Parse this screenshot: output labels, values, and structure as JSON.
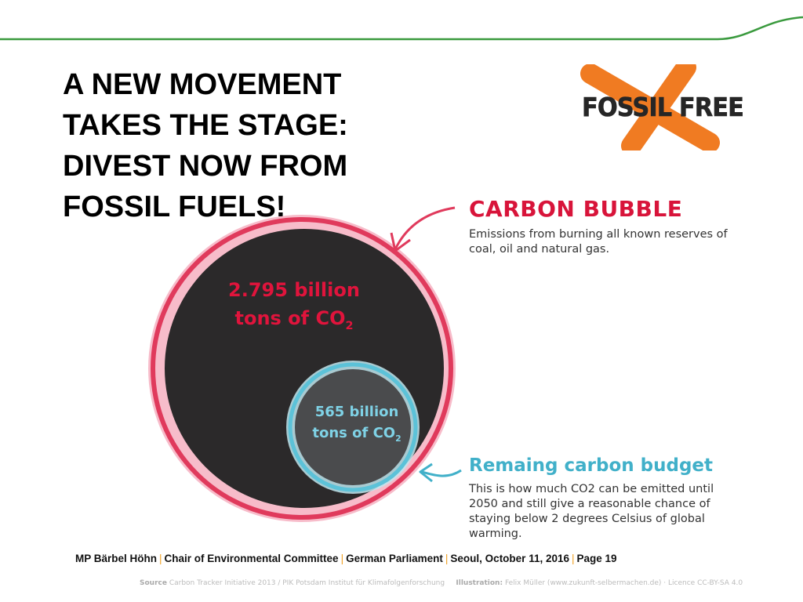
{
  "title_lines": [
    "A NEW MOVEMENT",
    "TAKES THE STAGE:",
    "DIVEST NOW FROM",
    "FOSSIL FUELS!"
  ],
  "logo": {
    "text": "FOSSIL FREE",
    "x_color": "#f07b22"
  },
  "colors": {
    "green_line": "#3a9a3e",
    "bubble_red": "#d8143a",
    "budget_blue": "#41b0c9",
    "dark_fill": "#2b292a"
  },
  "carbon_bubble": {
    "heading": "CARBON BUBBLE",
    "description": "Emissions from burning all known reserves of coal, oil and natural gas.",
    "amount_line1": "2.795 billion",
    "amount_line2": "tons of CO",
    "amount_sub": "2"
  },
  "carbon_budget": {
    "heading": "Remaing carbon budget",
    "description": "This is how much CO2 can be emitted until 2050 and still give a reasonable chance of staying below 2 degrees Celsius of global warming.",
    "amount_line1": "565 billion",
    "amount_line2": "tons of CO",
    "amount_sub": "2"
  },
  "footer": {
    "parts": [
      "MP Bärbel Höhn",
      "Chair of Environmental Committee",
      "German Parliament",
      "Seoul, October 11, 2016",
      "Page 19"
    ],
    "separator": "|"
  },
  "source": {
    "source_label": "Source",
    "source_text": "Carbon Tracker Initiative 2013 / PIK Potsdam Institut für Klimafolgenforschung",
    "illustration_label": "Illustration:",
    "illustration_text": "Felix Müller (www.zukunft-selbermachen.de) · Licence CC-BY-SA 4.0"
  }
}
